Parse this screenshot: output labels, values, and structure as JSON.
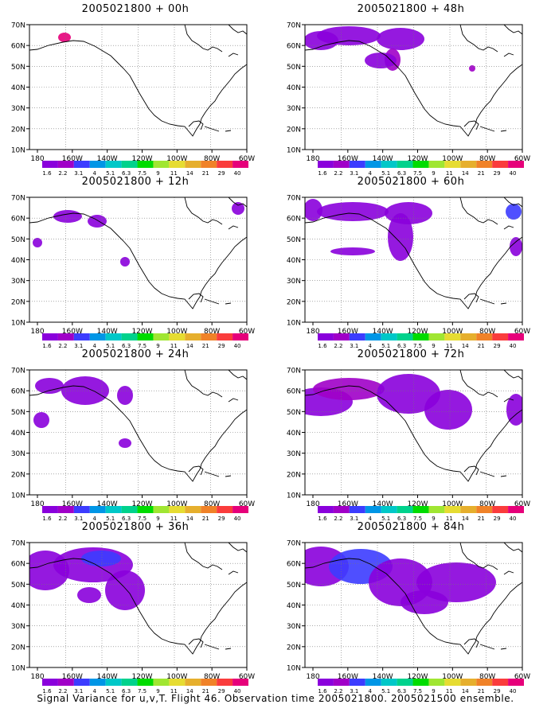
{
  "panels": [
    {
      "title": "2005021800 + 00h"
    },
    {
      "title": "2005021800 + 48h"
    },
    {
      "title": "2005021800 + 12h"
    },
    {
      "title": "2005021800 + 60h"
    },
    {
      "title": "2005021800 + 24h"
    },
    {
      "title": "2005021800 + 72h"
    },
    {
      "title": "2005021800 + 36h"
    },
    {
      "title": "2005021800 + 84h"
    }
  ],
  "lat_labels": [
    "70N",
    "60N",
    "50N",
    "40N",
    "30N",
    "20N",
    "10N"
  ],
  "lon_labels": [
    "180",
    "160W",
    "140W",
    "120W",
    "100W",
    "80W",
    "60W"
  ],
  "colorbar": {
    "levels": [
      "1.6",
      "2.2",
      "3.1",
      "4",
      "5.1",
      "6.3",
      "7.5",
      "9",
      "11",
      "14",
      "21",
      "29",
      "40"
    ],
    "colors": [
      "#8a00dc",
      "#a000c8",
      "#3c3cff",
      "#0096e6",
      "#00c8c8",
      "#00d28c",
      "#00dc00",
      "#a0e632",
      "#e6dc32",
      "#e6af2d",
      "#f08228",
      "#fa3c3c",
      "#e6007a"
    ]
  },
  "footer": "Signal Variance for u,v,T. Flight 46. Observation time 2005021800. 2005021500 ensemble."
}
